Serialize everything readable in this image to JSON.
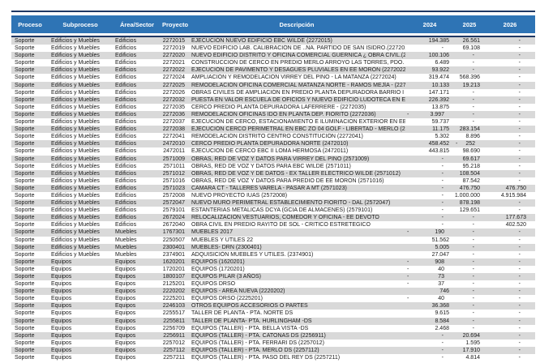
{
  "colors": {
    "header_bg": "#2E74B5",
    "border_line": "#1F3864",
    "row_stripe": "#D9D9D9"
  },
  "table": {
    "columns": [
      "Proceso",
      "Subproceso",
      "Área/Sector",
      "Proyecto",
      "Descripción",
      "2024",
      "2025",
      "2026"
    ],
    "rows": [
      [
        "Soporte",
        "Edificios y Muebles",
        "Edificios",
        "2272015",
        "EJECUCIÓN NUEVO EDIFICIO EBC WILDE (2272015)",
        "194.385",
        "26.561",
        "-"
      ],
      [
        "Soporte",
        "Edificios y Muebles",
        "Edificios",
        "2272019",
        "NUEVO EDIFICIO LAB. CALIBRACIÓN DE ..NA. PARTIDO DE SAN ISIDRO.(2272019)",
        "-",
        "69.108",
        "-"
      ],
      [
        "Soporte",
        "Edificios y Muebles",
        "Edificios",
        "2272020",
        "NUEVO EDIFICIO DISTRITO Y OFICINA COMERCIAL GUERNICA ¿ OBRA CIVIL.(2272020)",
        "100.106",
        "-",
        "-"
      ],
      [
        "Soporte",
        "Edificios y Muebles",
        "Edificios",
        "2272021",
        "CONSTRUCCION DE CERCO EN PREDIO MERLO ARROYO LAS TORRES, PDO. DE MERLO (227202",
        "6.489",
        "-",
        "-"
      ],
      [
        "Soporte",
        "Edificios y Muebles",
        "Edificios",
        "2272022",
        "EJECUCIÓN DE PAVIMENTO Y DESAGÜES PLUVIALES EN EE MORÓN (2272022)",
        "93.922",
        "-",
        "-"
      ],
      [
        "Soporte",
        "Edificios y Muebles",
        "Edificios",
        "2272024",
        "AMPLIACIÓN Y REMODELACIÓN VIRREY DEL PINO - LA MATANZA (2272024)",
        "319.474",
        "568.396",
        "-"
      ],
      [
        "Soporte",
        "Edificios y Muebles",
        "Edificios",
        "2272025",
        "REMODELACIÓN OFICINA COMERCIAL MATANZA NORTE - RAMOS MEJÍA  - (2272025)",
        "10.133",
        "19.213",
        "-"
      ],
      [
        "Soporte",
        "Edificios y Muebles",
        "Edificios",
        "2272026",
        "OBRAS CIVILES DE AMPLIACIÓN EN PREDIO PLANTA DEPURADORA BARRIO I (2272026)",
        "147.171",
        "-",
        "-"
      ],
      [
        "Soporte",
        "Edificios y Muebles",
        "Edificios",
        "2272032",
        "PUESTA EN VALOR ESCUELA DE OFICIOS Y NUEVO EDIFICIO LUDOTECA EN ESTABLECIMIENTO",
        "226.392",
        "-",
        "-"
      ],
      [
        "Soporte",
        "Edificios y Muebles",
        "Edificios",
        "2272035",
        "CERCO PREDIO PLANTA DEPURADORA LAFERRERE - (2272035)",
        "13.875",
        "-",
        "-"
      ],
      [
        "Soporte",
        "Edificios y Muebles",
        "Edificios",
        "2272036",
        "REMODELACION OFICINAS IDO EN PLANTA DEP. FIORITO (2272036)",
        "- 3.997",
        "-",
        "-"
      ],
      [
        "Soporte",
        "Edificios y Muebles",
        "Edificios",
        "2272037",
        "EJECUCIÓN DE CERCO, ESTACIONAMIENTO E ILUMINACION EXTERIOR EN EBC WILDE (227203",
        "59.737",
        "-",
        "-"
      ],
      [
        "Soporte",
        "Edificios y Muebles",
        "Edificios",
        "2272038",
        "EJECUCIÓN CERCO PERIMETRAL EN EBC ZO 04 GOLF - LIBERTAD - MERLO (2272038)",
        "11.175",
        "283.154",
        "-"
      ],
      [
        "Soporte",
        "Edificios y Muebles",
        "Edificios",
        "2272041",
        "REMODELACIÓN DISTRITO CENTRO CONSTITUCIÓN (2272041)",
        "5.302",
        "8.896",
        "-"
      ],
      [
        "Soporte",
        "Edificios y Muebles",
        "Edificios",
        "2472010",
        "CERCO PREDIO PLANTA DEPURADORA NORTE (2472010)",
        "458.452",
        "- 252",
        "-"
      ],
      [
        "Soporte",
        "Edificios y Muebles",
        "Edificios",
        "2472011",
        "EJECUCION DE CERCO EBC II LOMA HERMOSA (2472011)",
        "443.815",
        "98.690",
        "-"
      ],
      [
        "Soporte",
        "Edificios y Muebles",
        "Edificios",
        "2571009",
        "OBRAS, RED DE VOZ Y DATOS PARA VIRREY DEL PINO (2571009)",
        "-",
        "69.617",
        "-"
      ],
      [
        "Soporte",
        "Edificios y Muebles",
        "Edificios",
        "2571011",
        "OBRAS, RED DE VOZ Y DATOS PARA EBC WILDE (2571011)",
        "-",
        "95.218",
        "-"
      ],
      [
        "Soporte",
        "Edificios y Muebles",
        "Edificios",
        "2571012",
        "OBRAS, RED DE VOZ Y DE DATOS - EX TALLER ELECTRICO WILDE (2571012)",
        "-",
        "108.504",
        "-"
      ],
      [
        "Soporte",
        "Edificios y Muebles",
        "Edificios",
        "2571016",
        "OBRAS, RED DE VOZ Y DATOS PARA PREDIO DE  EE MORON (2571016)",
        "-",
        "87.542",
        "-"
      ],
      [
        "Soporte",
        "Edificios y Muebles",
        "Edificios",
        "2571023",
        "CAMARA CT - TALLERES VARELA - PASAR A MT (2571023)",
        "-",
        "476.750",
        "476.750"
      ],
      [
        "Soporte",
        "Edificios y Muebles",
        "Edificios",
        "2572008",
        "NUEVO PROYECTO IUAS (2572008)",
        "-",
        "1.000.000",
        "4.915.984"
      ],
      [
        "Soporte",
        "Edificios y Muebles",
        "Edificios",
        "2572047",
        "NUEVO MURO PERIMETRAL ESTABLECIMIENTO FIORITO - DAL (2572047)",
        "-",
        "878.198",
        "-"
      ],
      [
        "Soporte",
        "Edificios y Muebles",
        "Edificios",
        "2579101",
        "ESTANTERIAS METALICAS DCYA (GCIA DE ALMACENES) (2579101)",
        "-",
        "129.651",
        "-"
      ],
      [
        "Soporte",
        "Edificios y Muebles",
        "Edificios",
        "2672024",
        "RELOCALIZACION VESTUARIOS, COMEDOR Y OFICINA - EE DEVOTO",
        "-",
        "-",
        "177.673"
      ],
      [
        "Soporte",
        "Edificios y Muebles",
        "Edificios",
        "2672040",
        "OBRA CIVIL EN PREDIO RAYITO DE SOL - CRITICO ESTRETEGICO",
        "-",
        "-",
        "402.520"
      ],
      [
        "Soporte",
        "Edificios y Muebles",
        "Muebles",
        "1767301",
        "MUEBLES 2017",
        "- 190",
        "-",
        "-"
      ],
      [
        "Soporte",
        "Edificios y Muebles",
        "Muebles",
        "2250507",
        "MUEBLES Y ÚTILES 22",
        "51.562",
        "-",
        "-"
      ],
      [
        "Soporte",
        "Edificios y Muebles",
        "Muebles",
        "2300401",
        "MUEBLES- DRN (2300401)",
        "5.005",
        "-",
        "-"
      ],
      [
        "Soporte",
        "Edificios y Muebles",
        "Muebles",
        "2374901",
        "ADQUISICIÓN MUEBLES Y UTILES. (2374901)",
        "27.047",
        "-",
        "-"
      ],
      [
        "Soporte",
        "Equipos",
        "Equipos",
        "1620201",
        "EQUIPOS (1620201)",
        "- 908",
        "-",
        "-"
      ],
      [
        "Soporte",
        "Equipos",
        "Equipos",
        "1720201",
        "EQUIPOS (1720201)",
        "- 40",
        "-",
        "-"
      ],
      [
        "Soporte",
        "Equipos",
        "Equipos",
        "1800107",
        "EQUIPOS PILAR (3 AÑOS)",
        "- 73",
        "-",
        "-"
      ],
      [
        "Soporte",
        "Equipos",
        "Equipos",
        "2125201",
        "EQUIPOS DRSO",
        "- 37",
        "-",
        "-"
      ],
      [
        "Soporte",
        "Equipos",
        "Equipos",
        "2220202",
        "EQUIPOS - AREA NUEVA (2220202)",
        "746",
        "-",
        "-"
      ],
      [
        "Soporte",
        "Equipos",
        "Equipos",
        "2225201",
        "EQUIPOS DRSO (2225201)",
        "- 40",
        "-",
        "-"
      ],
      [
        "Soporte",
        "Equipos",
        "Equipos",
        "2246103",
        "OTROS EQUIPOS ACCESORIOS O PARTES",
        "36.368",
        "-",
        "-"
      ],
      [
        "Soporte",
        "Equipos",
        "Equipos",
        "2255517",
        "TALLER DE PLANTA - PTA. NORTE DS",
        "9.615",
        "-",
        "-"
      ],
      [
        "Soporte",
        "Equipos",
        "Equipos",
        "2255811",
        "TALLER DE PLANTA- PTA. HURLINGHAM -DS",
        "8.584",
        "-",
        "-"
      ],
      [
        "Soporte",
        "Equipos",
        "Equipos",
        "2256709",
        "EQUIPOS (TALLER) - PTA. BELLA VISTA -DS",
        "2.468",
        "-",
        "-"
      ],
      [
        "Soporte",
        "Equipos",
        "Equipos",
        "2256911",
        "EQUIPOS (TALLER) - PTA. CATONAS DS (2256911)",
        "-",
        "20.694",
        "-"
      ],
      [
        "Soporte",
        "Equipos",
        "Equipos",
        "2257012",
        "EQUIPOS (TALLER) - PTA. FERRARI DS (2257012)",
        "-",
        "1.595",
        "-"
      ],
      [
        "Soporte",
        "Equipos",
        "Equipos",
        "2257112",
        "EQUIPOS (TALLER) - PTA. MERLO DS (2257112)",
        "-",
        "17.910",
        "-"
      ],
      [
        "Soporte",
        "Equipos",
        "Equipos",
        "2257211",
        "EQUIPOS (TALLER) - PTA. PASO DEL REY DS (2257211)",
        "-",
        "4.814",
        "-"
      ]
    ]
  }
}
